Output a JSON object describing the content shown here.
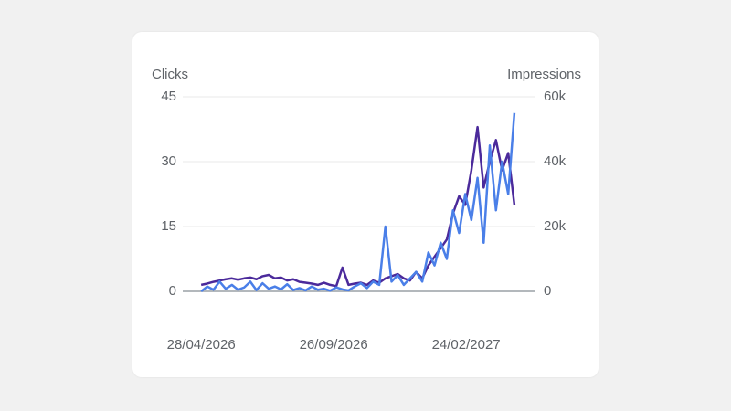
{
  "chart_data": {
    "type": "line",
    "y_label": "Clicks",
    "y2_label": "Impressions",
    "x": [
      "2026-04-28",
      "2026-05-05",
      "2026-05-12",
      "2026-05-19",
      "2026-05-26",
      "2026-06-02",
      "2026-06-09",
      "2026-06-16",
      "2026-06-23",
      "2026-06-30",
      "2026-07-07",
      "2026-07-14",
      "2026-07-21",
      "2026-07-28",
      "2026-08-04",
      "2026-08-11",
      "2026-08-18",
      "2026-08-25",
      "2026-09-01",
      "2026-09-08",
      "2026-09-15",
      "2026-09-22",
      "2026-09-29",
      "2026-10-06",
      "2026-10-13",
      "2026-10-20",
      "2026-10-27",
      "2026-11-03",
      "2026-11-10",
      "2026-11-17",
      "2026-11-24",
      "2026-12-01",
      "2026-12-08",
      "2026-12-15",
      "2026-12-22",
      "2026-12-29",
      "2027-01-05",
      "2027-01-12",
      "2027-01-19",
      "2027-01-26",
      "2027-02-02",
      "2027-02-09",
      "2027-02-16",
      "2027-02-23",
      "2027-03-02",
      "2027-03-09",
      "2027-03-16",
      "2027-03-23",
      "2027-03-30",
      "2027-04-06",
      "2027-04-13",
      "2027-04-20"
    ],
    "series": [
      {
        "name": "Clicks",
        "color": "#4b2a9b",
        "axis": "y",
        "values": [
          1.5,
          1.8,
          2.2,
          2.5,
          2.8,
          3,
          2.7,
          3,
          3.2,
          2.8,
          3.5,
          3.8,
          3,
          3.2,
          2.5,
          2.8,
          2.2,
          2,
          1.8,
          1.5,
          2,
          1.5,
          1.2,
          5.5,
          1.5,
          1.8,
          2,
          1.5,
          2.5,
          2,
          3,
          3.5,
          4,
          3,
          2.5,
          4.5,
          3,
          6,
          8,
          10,
          12,
          18,
          22,
          20,
          28,
          38,
          24,
          30,
          35,
          28,
          32,
          20
        ]
      },
      {
        "name": "Impressions",
        "color": "#4a7fe8",
        "axis": "y2",
        "values": [
          0,
          1500,
          500,
          3000,
          800,
          2000,
          500,
          1200,
          3000,
          400,
          2500,
          800,
          1500,
          600,
          2200,
          400,
          1000,
          300,
          1500,
          500,
          800,
          200,
          1200,
          600,
          300,
          1500,
          2500,
          1000,
          3000,
          2000,
          20000,
          3000,
          5000,
          2000,
          4000,
          6000,
          3000,
          12000,
          8000,
          15000,
          10000,
          25000,
          18000,
          30000,
          22000,
          35000,
          15000,
          45000,
          25000,
          40000,
          30000,
          55000
        ]
      }
    ],
    "xlim": [
      "2026-04-07",
      "2027-05-13"
    ],
    "xticks": [
      {
        "value": "2026-04-28",
        "label": "28/04/2026"
      },
      {
        "value": "2026-09-26",
        "label": "26/09/2026"
      },
      {
        "value": "2027-02-24",
        "label": "24/02/2027"
      }
    ],
    "ylim": [
      0,
      45
    ],
    "yticks": [
      0,
      15,
      30,
      45
    ],
    "y2lim": [
      0,
      60000
    ],
    "y2ticks": [
      0,
      {
        "value": 20000,
        "label": "20k"
      },
      {
        "value": 40000,
        "label": "40k"
      },
      {
        "value": 60000,
        "label": "60k"
      }
    ],
    "grid": true
  }
}
